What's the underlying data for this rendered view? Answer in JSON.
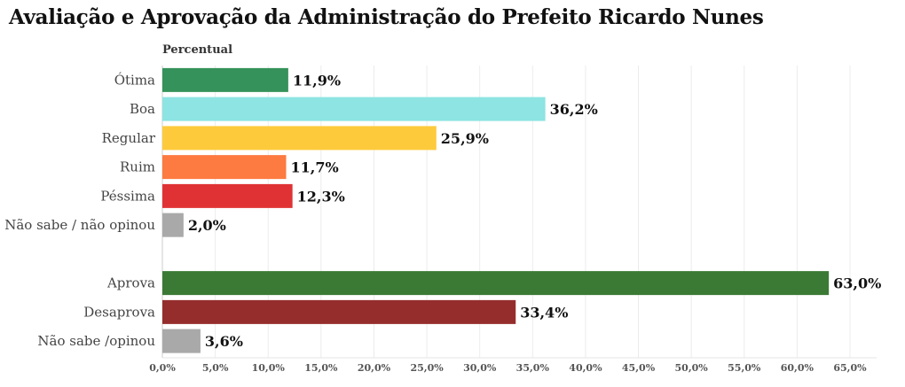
{
  "chart_data": {
    "type": "bar",
    "orientation": "horizontal",
    "title": "Avaliação e Aprovação da Administração do Prefeito Ricardo Nunes",
    "xlabel": "",
    "axis_title": "Percentual",
    "xlim": [
      0,
      65
    ],
    "xticks": [
      "0,0%",
      "5,0%",
      "10,0%",
      "15,0%",
      "20,0%",
      "25,0%",
      "30,0%",
      "35,0%",
      "40,0%",
      "45,0%",
      "50,0%",
      "55,0%",
      "60,0%",
      "65,0%"
    ],
    "grid": true,
    "categories": [
      "Ótima",
      "Boa",
      "Regular",
      "Ruim",
      "Péssima",
      "Não sabe / não opinou",
      "",
      "Aprova",
      "Desaprova",
      "Não sabe /opinou"
    ],
    "values": [
      11.9,
      36.2,
      25.9,
      11.7,
      12.3,
      2.0,
      null,
      63.0,
      33.4,
      3.6
    ],
    "labels": [
      "11,9%",
      "36,2%",
      "25,9%",
      "11,7%",
      "12,3%",
      "2,0%",
      "",
      "63,0%",
      "33,4%",
      "3,6%"
    ],
    "colors": [
      "#35925a",
      "#8de4e2",
      "#fdca3c",
      "#fd7a40",
      "#e03234",
      "#a9a9a9",
      "",
      "#3b7a35",
      "#962d2d",
      "#a9a9a9"
    ]
  }
}
